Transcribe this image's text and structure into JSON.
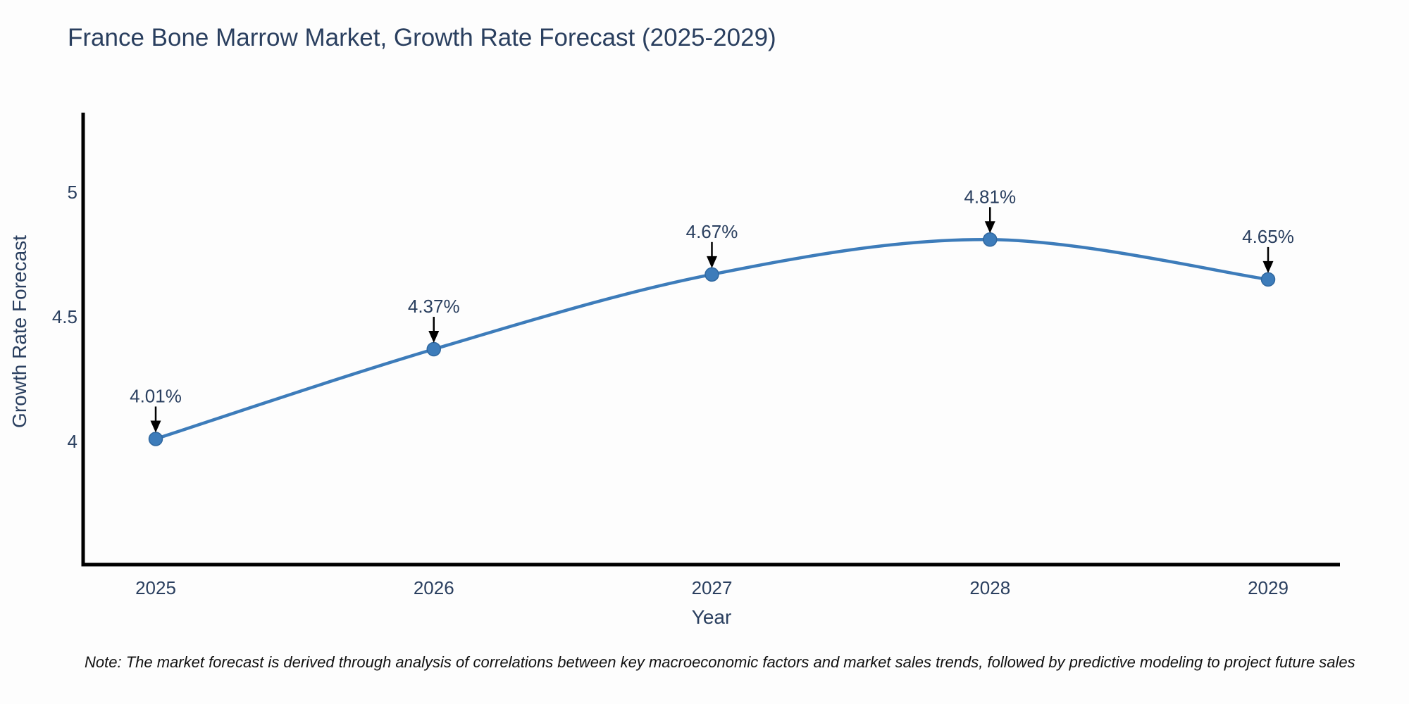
{
  "title": "France Bone Marrow Market, Growth Rate Forecast (2025-2029)",
  "note": "Note: The market forecast is derived through analysis of correlations between key macroeconomic factors and market sales trends, followed by predictive modeling to project future sales",
  "chart_data": {
    "type": "line",
    "title": "France Bone Marrow Market, Growth Rate Forecast (2025-2029)",
    "xlabel": "Year",
    "ylabel": "Growth Rate Forecast",
    "categories": [
      "2025",
      "2026",
      "2027",
      "2028",
      "2029"
    ],
    "series": [
      {
        "name": "Growth Rate Forecast",
        "values": [
          4.01,
          4.37,
          4.67,
          4.81,
          4.65
        ]
      }
    ],
    "point_labels": [
      "4.01%",
      "4.37%",
      "4.67%",
      "4.81%",
      "4.65%"
    ],
    "yticks": [
      4,
      4.5,
      5
    ],
    "ytick_labels": [
      "4",
      "4.5",
      "5"
    ],
    "ylim": [
      3.49,
      5.32
    ],
    "line_shape": "spline",
    "grid": false,
    "legend": "none",
    "annotation_style": "arrow-down-to-point",
    "colors": {
      "line": "#3d7cba",
      "marker_fill": "#3d7cba",
      "marker_edge": "#2f679f",
      "axis_line": "#000000",
      "text": "#2a3f5f",
      "arrow": "#000000"
    }
  }
}
